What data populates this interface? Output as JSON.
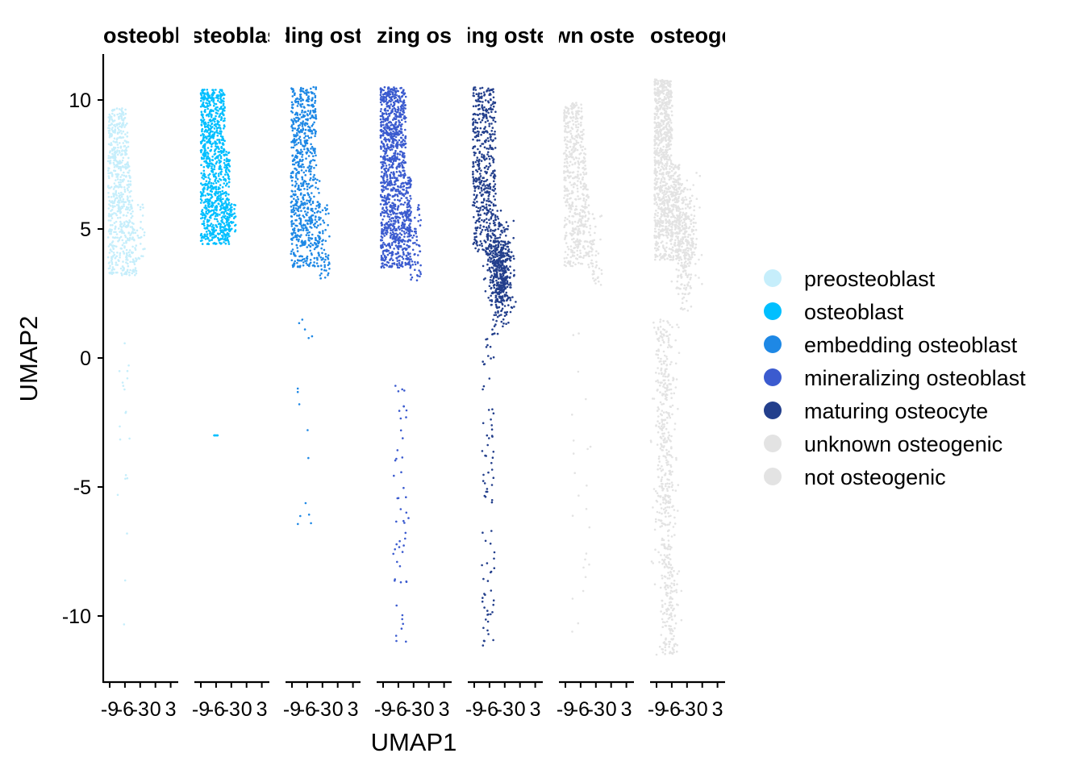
{
  "chart_data": {
    "type": "scatter",
    "xlabel": "UMAP1",
    "ylabel": "UMAP2",
    "ylim": [
      -12.5,
      11.8
    ],
    "y_ticks": [
      10,
      5,
      0,
      -5,
      -10
    ],
    "y_tick_labels": [
      "10",
      "5",
      "0",
      "-5",
      "-10"
    ],
    "x_ticks": [
      -9,
      -6,
      -3,
      0,
      3
    ],
    "x_tick_labels": [
      "-9",
      "-6",
      "-3",
      "0",
      "3"
    ],
    "grid": false,
    "legend_position": "right",
    "panels": [
      {
        "title": "preosteoblast",
        "series": "preosteoblast",
        "color": "#C6EEFB",
        "count": 700,
        "profile": "pre"
      },
      {
        "title": "osteoblast",
        "series": "osteoblast",
        "color": "#00BFFF",
        "count": 1000,
        "profile": "ob"
      },
      {
        "title": "embedding osteoblast",
        "series": "embedding osteoblast",
        "color": "#1E88E5",
        "count": 800,
        "profile": "emb"
      },
      {
        "title": "mineralizing osteoblast",
        "series": "mineralizing osteoblast",
        "color": "#3B5BCF",
        "count": 1300,
        "profile": "min"
      },
      {
        "title": "maturing osteocyte",
        "series": "maturing osteocyte",
        "color": "#233F8C",
        "count": 1100,
        "profile": "mat"
      },
      {
        "title": "unknown osteogenic",
        "series": "unknown osteogenic",
        "color": "#E3E3E3",
        "count": 600,
        "profile": "unk"
      },
      {
        "title": "not osteogenic",
        "series": "not osteogenic",
        "color": "#E3E3E3",
        "count": 1900,
        "profile": "not"
      }
    ],
    "legend": [
      {
        "label": "preosteoblast",
        "color": "#C6EEFB"
      },
      {
        "label": "osteoblast",
        "color": "#00BFFF"
      },
      {
        "label": "embedding osteoblast",
        "color": "#1E88E5"
      },
      {
        "label": "mineralizing osteoblast",
        "color": "#3B5BCF"
      },
      {
        "label": "maturing osteocyte",
        "color": "#233F8C"
      },
      {
        "label": "unknown osteogenic",
        "color": "#E3E3E3"
      },
      {
        "label": "not osteogenic",
        "color": "#E3E3E3"
      }
    ]
  }
}
